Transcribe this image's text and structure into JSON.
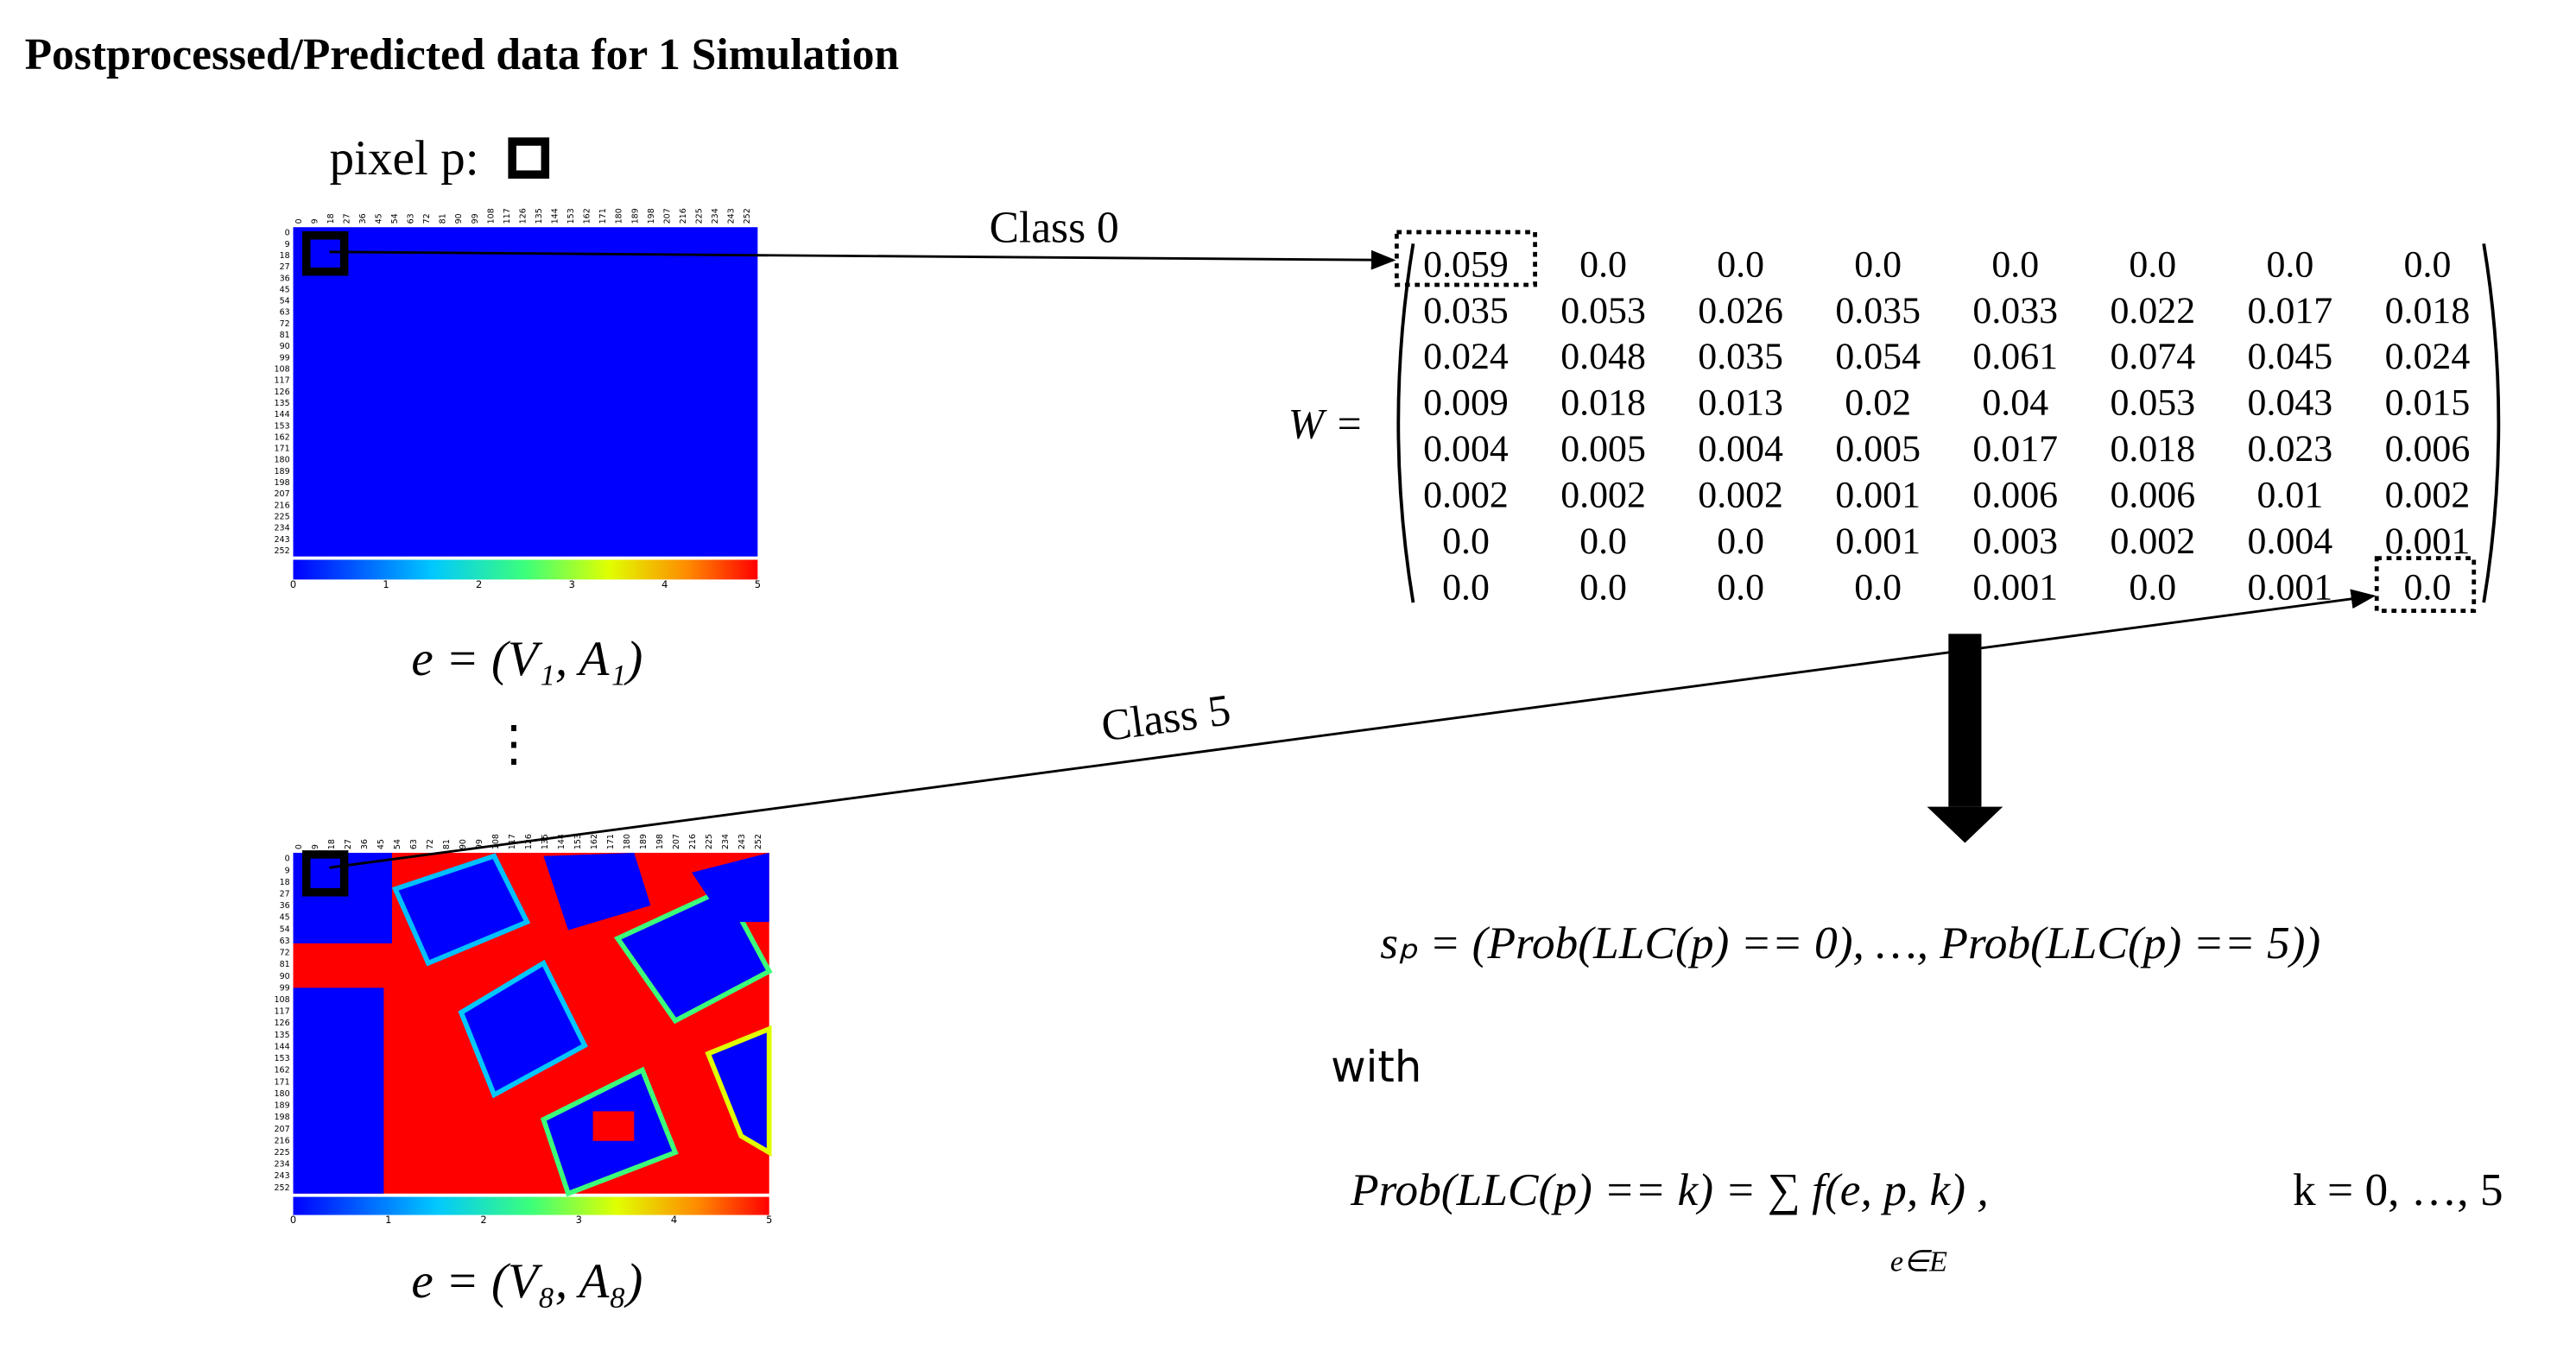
{
  "header": {
    "title": "Postprocessed/Predicted data for 1 Simulation"
  },
  "pixel_label": "pixel p:",
  "heatmaps": [
    {
      "label": "e = (V₁, A₁)"
    },
    {
      "label": "e = (V₈, A₈)"
    }
  ],
  "heatmap_ticks": [
    0,
    9,
    18,
    27,
    36,
    45,
    54,
    63,
    72,
    81,
    90,
    99,
    108,
    117,
    126,
    135,
    144,
    153,
    162,
    171,
    180,
    189,
    198,
    207,
    216,
    225,
    234,
    243,
    252
  ],
  "colorbar_ticks": [
    0,
    1,
    2,
    3,
    4,
    5
  ],
  "ellipsis": "⋮",
  "arrows": [
    {
      "label": "Class 0"
    },
    {
      "label": "Class 5"
    }
  ],
  "matrix": {
    "name": "W =",
    "rows": [
      [
        "0.059",
        "0.0",
        "0.0",
        "0.0",
        "0.0",
        "0.0",
        "0.0",
        "0.0"
      ],
      [
        "0.035",
        "0.053",
        "0.026",
        "0.035",
        "0.033",
        "0.022",
        "0.017",
        "0.018"
      ],
      [
        "0.024",
        "0.048",
        "0.035",
        "0.054",
        "0.061",
        "0.074",
        "0.045",
        "0.024"
      ],
      [
        "0.009",
        "0.018",
        "0.013",
        "0.02",
        "0.04",
        "0.053",
        "0.043",
        "0.015"
      ],
      [
        "0.004",
        "0.005",
        "0.004",
        "0.005",
        "0.017",
        "0.018",
        "0.023",
        "0.006"
      ],
      [
        "0.002",
        "0.002",
        "0.002",
        "0.001",
        "0.006",
        "0.006",
        "0.01",
        "0.002"
      ],
      [
        "0.0",
        "0.0",
        "0.0",
        "0.001",
        "0.003",
        "0.002",
        "0.004",
        "0.001"
      ],
      [
        "0.0",
        "0.0",
        "0.0",
        "0.0",
        "0.001",
        "0.0",
        "0.001",
        "0.0"
      ]
    ]
  },
  "formulas": {
    "score": "sₚ = (Prob(LLC(p) == 0), …, Prob(LLC(p) == 5))",
    "with": "with",
    "probability": "Prob(LLC(p) == k) = ∑ f(e, p, k) ,",
    "sum_index": "e∈E",
    "range": "k = 0, …, 5"
  }
}
